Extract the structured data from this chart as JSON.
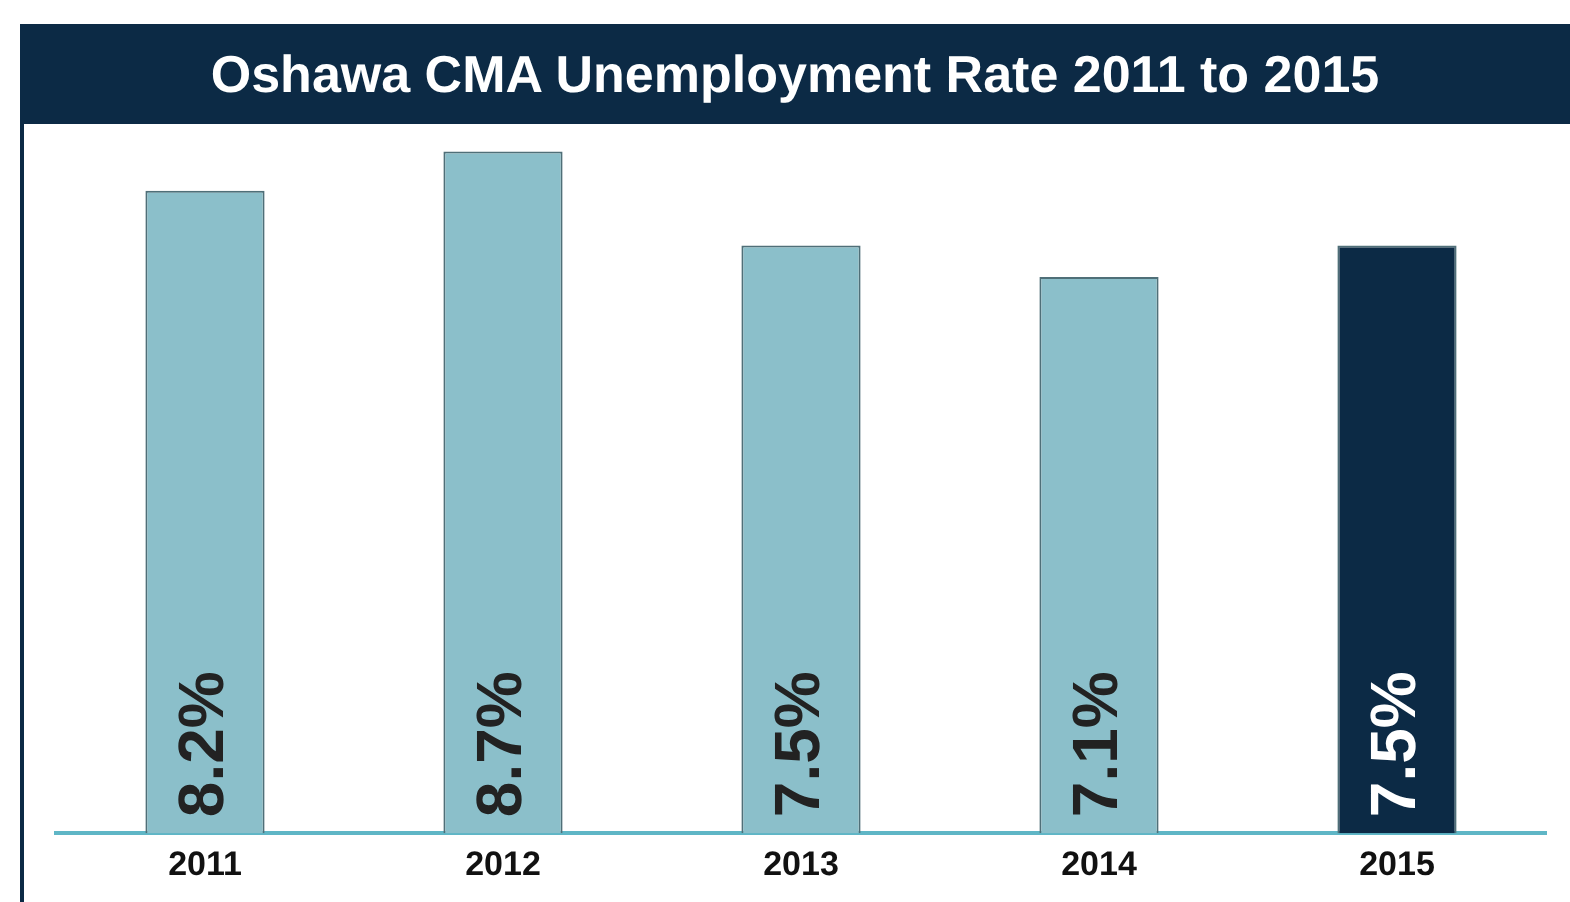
{
  "chart_data": {
    "type": "bar",
    "title": "Oshawa CMA Unemployment Rate 2011 to 2015",
    "categories": [
      "2011",
      "2012",
      "2013",
      "2014",
      "2015"
    ],
    "values": [
      8.2,
      8.7,
      7.5,
      7.1,
      7.5
    ],
    "colors": [
      "#8bbfca",
      "#8bbfca",
      "#8bbfca",
      "#8bbfca",
      "#0c2a45"
    ],
    "value_labels": [
      "8.2%",
      "8.7%",
      "7.5%",
      "7.1%",
      "7.5%"
    ],
    "grid": false,
    "legend": false
  }
}
